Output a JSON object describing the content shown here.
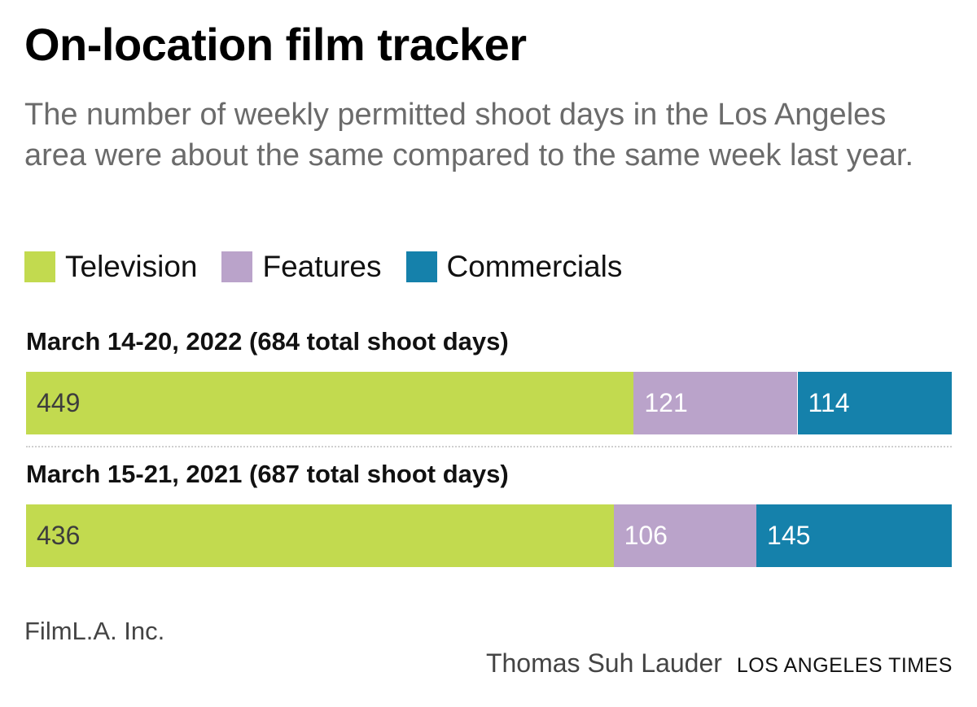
{
  "header": {
    "title": "On-location film tracker",
    "subtitle": "The number of weekly permitted shoot days in the Los Angeles area were about the same compared to the same week last year."
  },
  "legend": [
    {
      "name": "Television",
      "color": "#c2da4f"
    },
    {
      "name": "Features",
      "color": "#baa3ca"
    },
    {
      "name": "Commercials",
      "color": "#1581ab"
    }
  ],
  "chart_data": {
    "type": "bar",
    "orientation": "horizontal",
    "stacked": true,
    "grid": false,
    "legend_position": "top",
    "categories": [
      "March 14-20, 2022 (684 total shoot days)",
      "March 15-21, 2021 (687 total shoot days)"
    ],
    "series": [
      {
        "name": "Television",
        "color": "#c2da4f",
        "label_color": "#3d3d3d",
        "values": [
          449,
          436
        ]
      },
      {
        "name": "Features",
        "color": "#baa3ca",
        "label_color": "#ffffff",
        "values": [
          121,
          106
        ]
      },
      {
        "name": "Commercials",
        "color": "#1581ab",
        "label_color": "#ffffff",
        "values": [
          114,
          145
        ]
      }
    ]
  },
  "footer": {
    "source": "FilmL.A. Inc.",
    "author": "Thomas Suh Lauder",
    "organization": "LOS ANGELES TIMES"
  }
}
